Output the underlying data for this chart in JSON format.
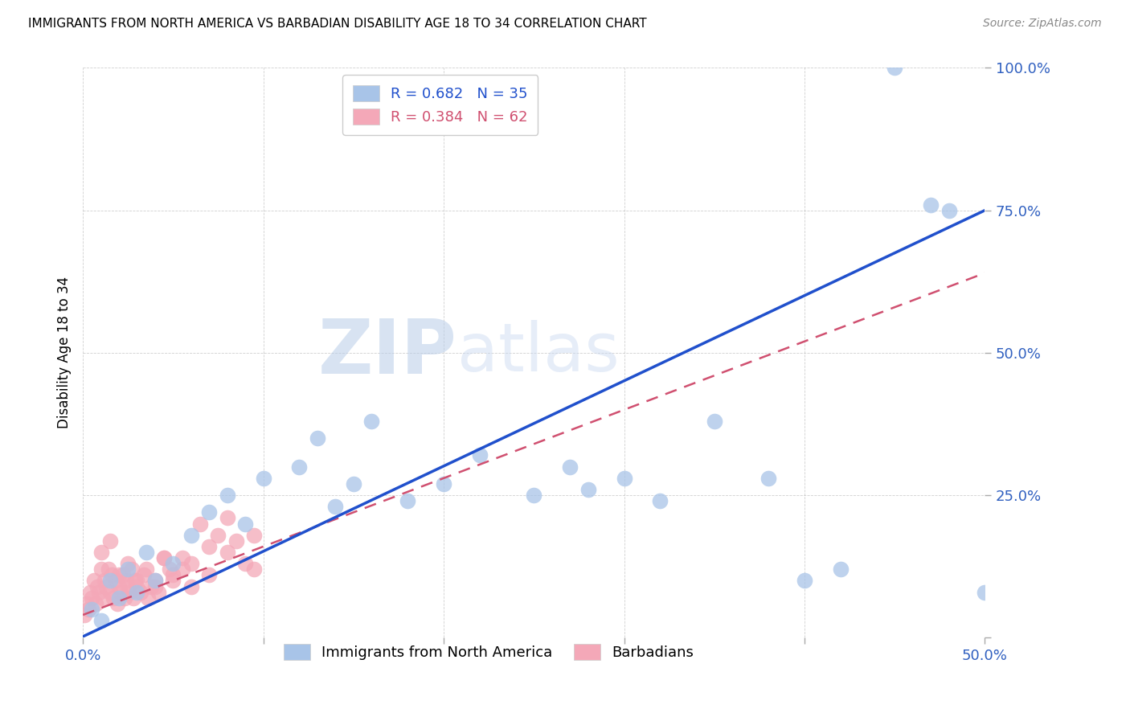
{
  "title": "IMMIGRANTS FROM NORTH AMERICA VS BARBADIAN DISABILITY AGE 18 TO 34 CORRELATION CHART",
  "source": "Source: ZipAtlas.com",
  "ylabel": "Disability Age 18 to 34",
  "xlim": [
    0.0,
    0.5
  ],
  "ylim": [
    0.0,
    1.0
  ],
  "blue_R": 0.682,
  "blue_N": 35,
  "pink_R": 0.384,
  "pink_N": 62,
  "blue_color": "#A8C4E8",
  "pink_color": "#F4A8B8",
  "blue_line_color": "#2050CC",
  "pink_line_color": "#D05070",
  "blue_line": [
    0.0,
    0.002,
    0.5,
    0.75
  ],
  "pink_line": [
    0.0,
    0.04,
    0.5,
    0.64
  ],
  "blue_scatter_x": [
    0.005,
    0.01,
    0.015,
    0.02,
    0.025,
    0.03,
    0.035,
    0.04,
    0.05,
    0.06,
    0.07,
    0.08,
    0.09,
    0.1,
    0.12,
    0.13,
    0.14,
    0.15,
    0.16,
    0.18,
    0.2,
    0.22,
    0.25,
    0.27,
    0.28,
    0.3,
    0.32,
    0.35,
    0.38,
    0.4,
    0.42,
    0.45,
    0.47,
    0.48,
    0.5
  ],
  "blue_scatter_y": [
    0.05,
    0.03,
    0.1,
    0.07,
    0.12,
    0.08,
    0.15,
    0.1,
    0.13,
    0.18,
    0.22,
    0.25,
    0.2,
    0.28,
    0.3,
    0.35,
    0.23,
    0.27,
    0.38,
    0.24,
    0.27,
    0.32,
    0.25,
    0.3,
    0.26,
    0.28,
    0.24,
    0.38,
    0.28,
    0.1,
    0.12,
    1.0,
    0.76,
    0.75,
    0.08
  ],
  "pink_scatter_x": [
    0.001,
    0.002,
    0.003,
    0.004,
    0.005,
    0.006,
    0.007,
    0.008,
    0.009,
    0.01,
    0.011,
    0.012,
    0.013,
    0.014,
    0.015,
    0.016,
    0.017,
    0.018,
    0.019,
    0.02,
    0.021,
    0.022,
    0.023,
    0.024,
    0.025,
    0.026,
    0.027,
    0.028,
    0.029,
    0.03,
    0.032,
    0.034,
    0.036,
    0.038,
    0.04,
    0.042,
    0.045,
    0.048,
    0.05,
    0.055,
    0.06,
    0.065,
    0.07,
    0.075,
    0.08,
    0.085,
    0.09,
    0.095,
    0.01,
    0.015,
    0.02,
    0.025,
    0.03,
    0.035,
    0.04,
    0.045,
    0.05,
    0.055,
    0.06,
    0.07,
    0.08,
    0.095
  ],
  "pink_scatter_y": [
    0.04,
    0.06,
    0.05,
    0.08,
    0.07,
    0.1,
    0.06,
    0.09,
    0.08,
    0.12,
    0.07,
    0.1,
    0.09,
    0.12,
    0.08,
    0.11,
    0.07,
    0.1,
    0.06,
    0.09,
    0.08,
    0.11,
    0.07,
    0.1,
    0.09,
    0.08,
    0.12,
    0.07,
    0.1,
    0.09,
    0.08,
    0.11,
    0.07,
    0.09,
    0.1,
    0.08,
    0.14,
    0.12,
    0.11,
    0.14,
    0.13,
    0.2,
    0.16,
    0.18,
    0.15,
    0.17,
    0.13,
    0.12,
    0.15,
    0.17,
    0.11,
    0.13,
    0.1,
    0.12,
    0.09,
    0.14,
    0.1,
    0.12,
    0.09,
    0.11,
    0.21,
    0.18
  ]
}
